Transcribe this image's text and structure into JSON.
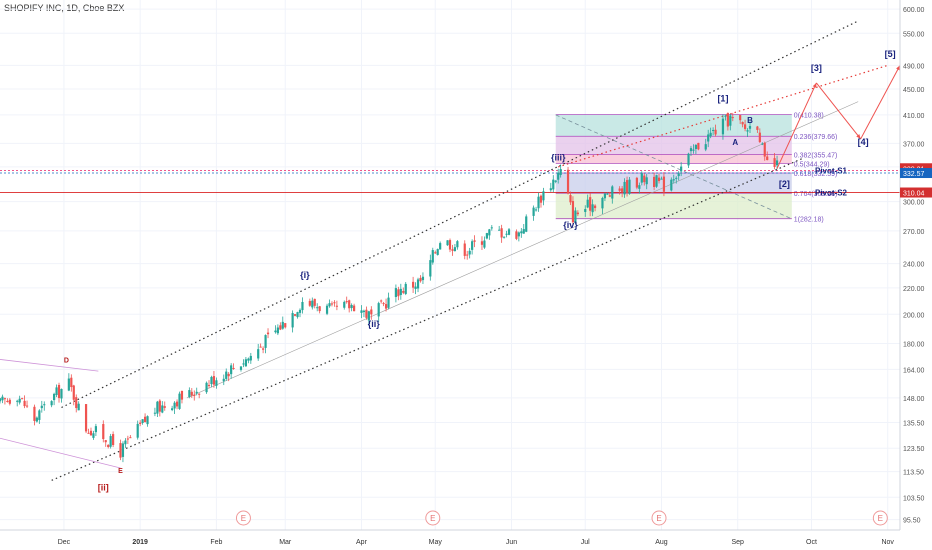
{
  "title": "SHOPIFY INC, 1D, Cboe BZX",
  "colors": {
    "up": "#26a69a",
    "down": "#ef5350",
    "blue_wave": "#1a237e",
    "red_wave": "#b71c1c",
    "projection": "#ef5350",
    "channel": "#333333",
    "fib_line": "#9c27b0",
    "pivot_s1": "#e91e63",
    "pivot_s2": "#d50000",
    "price_blue": "#1565c0",
    "price_red": "#d32f2f"
  },
  "chart_data": {
    "type": "candlestick",
    "yscale": "log",
    "ylim": [
      92,
      620
    ],
    "y_ticks": [
      "600.00",
      "550.00",
      "490.00",
      "450.00",
      "410.00",
      "370.00",
      "340.00",
      "300.00",
      "270.00",
      "240.00",
      "220.00",
      "200.00",
      "180.00",
      "164.00",
      "148.00",
      "135.50",
      "123.50",
      "113.50",
      "103.50",
      "95.50"
    ],
    "x_range": [
      "2018-11-05",
      "2019-11-06"
    ],
    "x_ticks": [
      {
        "date": "2018-12-01",
        "label": "Dec"
      },
      {
        "date": "2019-01-01",
        "label": "2019"
      },
      {
        "date": "2019-02-01",
        "label": "Feb"
      },
      {
        "date": "2019-03-01",
        "label": "Mar"
      },
      {
        "date": "2019-04-01",
        "label": "Apr"
      },
      {
        "date": "2019-05-01",
        "label": "May"
      },
      {
        "date": "2019-06-01",
        "label": "Jun"
      },
      {
        "date": "2019-07-01",
        "label": "Jul"
      },
      {
        "date": "2019-08-01",
        "label": "Aug"
      },
      {
        "date": "2019-09-01",
        "label": "Sep"
      },
      {
        "date": "2019-10-01",
        "label": "Oct"
      },
      {
        "date": "2019-11-01",
        "label": "Nov"
      }
    ],
    "earnings_markers": {
      "label": "E",
      "dates": [
        "2019-02-12",
        "2019-04-30",
        "2019-07-31",
        "2019-10-29"
      ]
    },
    "price_path": [
      {
        "date": "2018-11-05",
        "price": 145
      },
      {
        "date": "2018-11-12",
        "price": 150
      },
      {
        "date": "2018-11-19",
        "price": 137
      },
      {
        "date": "2018-11-26",
        "price": 148
      },
      {
        "date": "2018-12-03",
        "price": 156
      },
      {
        "date": "2018-12-10",
        "price": 133
      },
      {
        "date": "2018-12-17",
        "price": 129
      },
      {
        "date": "2018-12-24",
        "price": 122
      },
      {
        "date": "2019-01-07",
        "price": 142
      },
      {
        "date": "2019-01-21",
        "price": 150
      },
      {
        "date": "2019-02-04",
        "price": 162
      },
      {
        "date": "2019-02-15",
        "price": 172
      },
      {
        "date": "2019-03-01",
        "price": 195
      },
      {
        "date": "2019-03-08",
        "price": 210
      },
      {
        "date": "2019-03-20",
        "price": 203
      },
      {
        "date": "2019-03-29",
        "price": 207
      },
      {
        "date": "2019-04-05",
        "price": 198
      },
      {
        "date": "2019-04-16",
        "price": 218
      },
      {
        "date": "2019-04-26",
        "price": 226
      },
      {
        "date": "2019-05-03",
        "price": 262
      },
      {
        "date": "2019-05-14",
        "price": 252
      },
      {
        "date": "2019-05-24",
        "price": 270
      },
      {
        "date": "2019-06-04",
        "price": 268
      },
      {
        "date": "2019-06-14",
        "price": 310
      },
      {
        "date": "2019-06-21",
        "price": 335
      },
      {
        "date": "2019-06-26",
        "price": 285
      },
      {
        "date": "2019-07-05",
        "price": 300
      },
      {
        "date": "2019-07-16",
        "price": 315
      },
      {
        "date": "2019-07-26",
        "price": 328
      },
      {
        "date": "2019-08-02",
        "price": 318
      },
      {
        "date": "2019-08-09",
        "price": 340
      },
      {
        "date": "2019-08-16",
        "price": 368
      },
      {
        "date": "2019-08-22",
        "price": 385
      },
      {
        "date": "2019-08-29",
        "price": 405
      },
      {
        "date": "2019-09-04",
        "price": 390
      },
      {
        "date": "2019-09-09",
        "price": 398
      },
      {
        "date": "2019-09-12",
        "price": 345
      },
      {
        "date": "2019-09-17",
        "price": 340
      }
    ],
    "fibonacci": [
      {
        "label": "0(410.38)",
        "price": 410.38,
        "fill": "#b2ebf2"
      },
      {
        "label": "0.236(379.66)",
        "price": 379.66,
        "fill": "#b2dfdb"
      },
      {
        "label": "0.382(355.47)",
        "price": 355.47,
        "fill": "#e1bee7"
      },
      {
        "label": "0.5(344.29)",
        "price": 344.29,
        "fill": "#f8bbd0"
      },
      {
        "label": "0.618(332.59)",
        "price": 332.59,
        "fill": "#ffffff"
      },
      {
        "label": "0.764(309.28)",
        "price": 309.28,
        "fill": "#c5cae9"
      },
      {
        "label": "1(282.18)",
        "price": 282.18,
        "fill": "#dcedc8"
      }
    ],
    "fib_range": [
      "2019-06-19",
      "2019-09-23"
    ],
    "price_labels": [
      {
        "text": "338.31",
        "price": 338.31,
        "color": "#d32f2f"
      },
      {
        "text": "332.57",
        "price": 332.57,
        "color": "#1565c0"
      },
      {
        "text": "310.04",
        "price": 310.04,
        "color": "#d32f2f"
      }
    ],
    "pivots": [
      {
        "label": "Pivot-S1",
        "price": 335.5,
        "color": "#e91e63"
      },
      {
        "label": "Pivot-S2",
        "price": 310.04,
        "color": "#d50000"
      }
    ],
    "channel": {
      "upper": [
        {
          "date": "2018-11-30",
          "price": 143
        },
        {
          "date": "2019-10-20",
          "price": 575
        }
      ],
      "lower": [
        {
          "date": "2018-11-26",
          "price": 110
        },
        {
          "date": "2019-09-27",
          "price": 350
        }
      ]
    },
    "red_channel_top": [
      {
        "date": "2019-06-20",
        "price": 340
      },
      {
        "date": "2019-11-01",
        "price": 490
      }
    ],
    "wave_labels": [
      {
        "text": "D",
        "date": "2018-12-02",
        "price": 168,
        "color": "#b71c1c",
        "size": 7
      },
      {
        "text": "E",
        "date": "2018-12-24",
        "price": 113,
        "color": "#b71c1c",
        "size": 7
      },
      {
        "text": "[ii]",
        "date": "2018-12-17",
        "price": 106,
        "color": "#b71c1c",
        "size": 9
      },
      {
        "text": "{i}",
        "date": "2019-03-09",
        "price": 228,
        "color": "#1a237e",
        "size": 9
      },
      {
        "text": "{ii}",
        "date": "2019-04-06",
        "price": 191,
        "color": "#1a237e",
        "size": 9
      },
      {
        "text": "{iii}",
        "date": "2019-06-20",
        "price": 348,
        "color": "#1a237e",
        "size": 9
      },
      {
        "text": "{iv}",
        "date": "2019-06-25",
        "price": 273,
        "color": "#1a237e",
        "size": 9
      },
      {
        "text": "[1]",
        "date": "2019-08-26",
        "price": 430,
        "color": "#1a237e",
        "size": 9
      },
      {
        "text": "A",
        "date": "2019-08-31",
        "price": 368,
        "color": "#1a237e",
        "size": 8
      },
      {
        "text": "B",
        "date": "2019-09-06",
        "price": 398,
        "color": "#1a237e",
        "size": 8
      },
      {
        "text": "[2]",
        "date": "2019-09-20",
        "price": 316,
        "color": "#1a237e",
        "size": 9
      },
      {
        "text": "[3]",
        "date": "2019-10-03",
        "price": 480,
        "color": "#1a237e",
        "size": 9
      },
      {
        "text": "[4]",
        "date": "2019-10-22",
        "price": 368,
        "color": "#1a237e",
        "size": 9
      },
      {
        "text": "[5]",
        "date": "2019-11-02",
        "price": 505,
        "color": "#1a237e",
        "size": 9
      }
    ],
    "projection": [
      {
        "date": "2019-09-17",
        "price": 338
      },
      {
        "date": "2019-10-03",
        "price": 460
      },
      {
        "date": "2019-10-21",
        "price": 376
      },
      {
        "date": "2019-11-06",
        "price": 490
      }
    ]
  }
}
